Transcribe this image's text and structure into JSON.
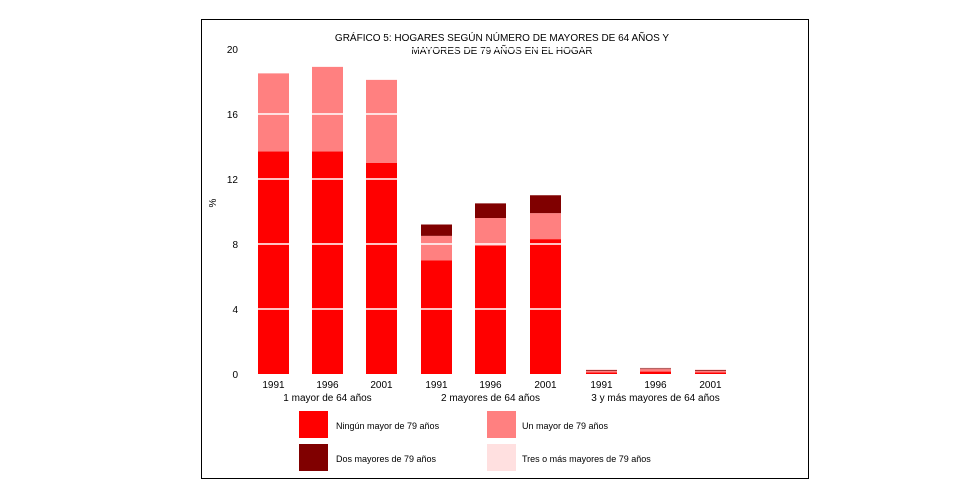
{
  "chart_data": {
    "type": "bar",
    "stacked": true,
    "title": [
      "GRÁFICO 5: HOGARES SEGÚN NÚMERO DE MAYORES DE 64 AÑOS Y",
      "MAYORES DE 79 AÑOS EN EL HOGAR"
    ],
    "ylabel": "%",
    "xlabel": "",
    "ylim": [
      0,
      20
    ],
    "yticks": [
      "0",
      "4",
      "8",
      "12",
      "16",
      "20"
    ],
    "grid": "horizontal white lines over bars",
    "legend_placement": "bottom",
    "groups": [
      {
        "label": "1 mayor de 64 años",
        "categories": [
          "1991",
          "1996",
          "2001"
        ]
      },
      {
        "label": "2 mayores de 64 años",
        "categories": [
          "1991",
          "1996",
          "2001"
        ]
      },
      {
        "label": "3 y más mayores de 64 años",
        "categories": [
          "1991",
          "1996",
          "2001"
        ]
      }
    ],
    "categories": [
      "1991",
      "1996",
      "2001",
      "1991",
      "1996",
      "2001",
      "1991",
      "1996",
      "2001"
    ],
    "series": [
      {
        "name": "Ningún mayor de 79 años",
        "color": "#ff0000",
        "values": [
          13.7,
          13.7,
          13.0,
          7.0,
          7.9,
          8.3,
          0.1,
          0.15,
          0.1
        ]
      },
      {
        "name": "Un mayor de 79 años",
        "color": "#ff8080",
        "values": [
          4.8,
          5.2,
          5.1,
          1.5,
          1.7,
          1.6,
          0.1,
          0.15,
          0.1
        ]
      },
      {
        "name": "Dos mayores de 79 años",
        "color": "#800000",
        "values": [
          0,
          0,
          0,
          0.7,
          0.9,
          1.1,
          0.05,
          0.05,
          0.05
        ]
      },
      {
        "name": "Tres o más mayores de 79 años",
        "color": "#ffe0e0",
        "values": [
          0,
          0,
          0,
          0,
          0,
          0,
          0.05,
          0.05,
          0.05
        ]
      }
    ]
  }
}
